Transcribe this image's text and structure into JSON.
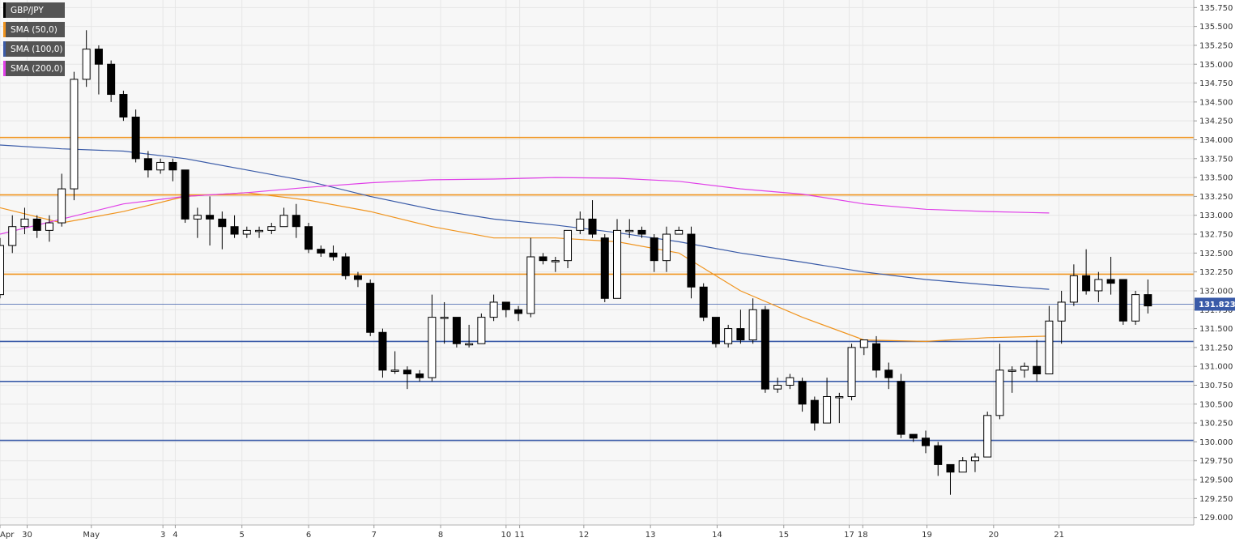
{
  "legend": [
    {
      "label": "GBP/JPY",
      "color": "#000000"
    },
    {
      "label": "SMA (50,0)",
      "color": "#f0941e"
    },
    {
      "label": "SMA (100,0)",
      "color": "#3a5ba8"
    },
    {
      "label": "SMA (200,0)",
      "color": "#e040e8"
    }
  ],
  "chart_data": {
    "type": "candlestick",
    "title": "",
    "xlabel": "",
    "ylabel": "",
    "symbol": "GBP/JPY",
    "timeframe_note": "",
    "y_range": [
      128.9,
      135.85
    ],
    "y_ticks": [
      "129.000",
      "129.250",
      "129.500",
      "129.750",
      "130.000",
      "130.250",
      "130.500",
      "130.750",
      "131.000",
      "131.250",
      "131.500",
      "131.750",
      "132.000",
      "132.250",
      "132.500",
      "132.750",
      "133.000",
      "133.250",
      "133.500",
      "133.750",
      "134.000",
      "134.250",
      "134.500",
      "134.750",
      "135.000",
      "135.250",
      "135.500",
      "135.750"
    ],
    "x_ticks": [
      {
        "label": "Apr",
        "i": -0.5
      },
      {
        "label": "30",
        "i": 2.2
      },
      {
        "label": "May",
        "i": 7.4
      },
      {
        "label": "3",
        "i": 13.2
      },
      {
        "label": "4",
        "i": 14.2
      },
      {
        "label": "5",
        "i": 19.6
      },
      {
        "label": "6",
        "i": 25.0
      },
      {
        "label": "7",
        "i": 30.3
      },
      {
        "label": "8",
        "i": 35.7
      },
      {
        "label": "10",
        "i": 41.0
      },
      {
        "label": "11",
        "i": 42.1
      },
      {
        "label": "12",
        "i": 47.3
      },
      {
        "label": "13",
        "i": 52.7
      },
      {
        "label": "14",
        "i": 58.1
      },
      {
        "label": "15",
        "i": 63.5
      },
      {
        "label": "17",
        "i": 68.8
      },
      {
        "label": "18",
        "i": 69.9
      },
      {
        "label": "19",
        "i": 75.1
      },
      {
        "label": "20",
        "i": 80.5
      },
      {
        "label": "21",
        "i": 85.8
      }
    ],
    "grid": true,
    "last_price": "131.823",
    "last_price_value": 131.823,
    "last_price_color": "#3a5ba8",
    "candles": [
      [
        131.95,
        132.6,
        132.7,
        131.9
      ],
      [
        132.6,
        132.85,
        133.0,
        132.5
      ],
      [
        132.85,
        132.95,
        133.1,
        132.75
      ],
      [
        132.95,
        132.8,
        133.0,
        132.7
      ],
      [
        132.8,
        132.9,
        133.0,
        132.65
      ],
      [
        132.9,
        133.35,
        133.55,
        132.85
      ],
      [
        133.35,
        134.8,
        134.9,
        133.2
      ],
      [
        134.8,
        135.2,
        135.45,
        134.7
      ],
      [
        135.2,
        135.0,
        135.25,
        134.6
      ],
      [
        135.0,
        134.6,
        135.05,
        134.5
      ],
      [
        134.6,
        134.3,
        134.65,
        134.25
      ],
      [
        134.3,
        133.75,
        134.4,
        133.7
      ],
      [
        133.75,
        133.6,
        133.85,
        133.5
      ],
      [
        133.6,
        133.7,
        133.75,
        133.55
      ],
      [
        133.7,
        133.6,
        133.75,
        133.45
      ],
      [
        133.6,
        132.95,
        133.6,
        132.9
      ],
      [
        132.95,
        133.0,
        133.1,
        132.7
      ],
      [
        133.0,
        132.95,
        133.25,
        132.6
      ],
      [
        132.95,
        132.85,
        133.05,
        132.55
      ],
      [
        132.85,
        132.75,
        133.0,
        132.7
      ],
      [
        132.75,
        132.8,
        132.85,
        132.7
      ],
      [
        132.8,
        132.8,
        132.85,
        132.7
      ],
      [
        132.8,
        132.85,
        132.9,
        132.75
      ],
      [
        132.85,
        133.0,
        133.1,
        132.85
      ],
      [
        133.0,
        132.85,
        133.15,
        132.7
      ],
      [
        132.85,
        132.55,
        132.9,
        132.5
      ],
      [
        132.55,
        132.5,
        132.6,
        132.45
      ],
      [
        132.5,
        132.45,
        132.6,
        132.4
      ],
      [
        132.45,
        132.2,
        132.5,
        132.15
      ],
      [
        132.2,
        132.15,
        132.25,
        132.05
      ],
      [
        132.1,
        131.45,
        132.15,
        131.4
      ],
      [
        131.45,
        130.95,
        131.5,
        130.85
      ],
      [
        130.95,
        130.95,
        131.2,
        130.9
      ],
      [
        130.95,
        130.9,
        131.0,
        130.7
      ],
      [
        130.9,
        130.85,
        130.95,
        130.8
      ],
      [
        130.85,
        131.65,
        131.95,
        130.8
      ],
      [
        131.65,
        131.65,
        131.85,
        131.3
      ],
      [
        131.65,
        131.3,
        131.65,
        131.25
      ],
      [
        131.3,
        131.3,
        131.55,
        131.25
      ],
      [
        131.3,
        131.65,
        131.7,
        131.3
      ],
      [
        131.65,
        131.85,
        131.95,
        131.6
      ],
      [
        131.85,
        131.75,
        131.85,
        131.65
      ],
      [
        131.75,
        131.7,
        131.8,
        131.6
      ],
      [
        131.7,
        132.45,
        132.7,
        131.65
      ],
      [
        132.45,
        132.4,
        132.5,
        132.35
      ],
      [
        132.4,
        132.4,
        132.45,
        132.25
      ],
      [
        132.4,
        132.8,
        132.8,
        132.3
      ],
      [
        132.8,
        132.95,
        133.05,
        132.75
      ],
      [
        132.95,
        132.75,
        133.2,
        132.7
      ],
      [
        132.7,
        131.9,
        132.75,
        131.85
      ],
      [
        131.9,
        132.8,
        132.95,
        131.9
      ],
      [
        132.8,
        132.8,
        132.95,
        132.7
      ],
      [
        132.8,
        132.75,
        132.85,
        132.7
      ],
      [
        132.7,
        132.4,
        132.75,
        132.25
      ],
      [
        132.4,
        132.75,
        132.85,
        132.25
      ],
      [
        132.75,
        132.8,
        132.85,
        132.75
      ],
      [
        132.75,
        132.05,
        132.85,
        131.9
      ],
      [
        132.05,
        131.65,
        132.1,
        131.6
      ],
      [
        131.65,
        131.3,
        131.65,
        131.25
      ],
      [
        131.3,
        131.5,
        131.55,
        131.25
      ],
      [
        131.5,
        131.35,
        131.75,
        131.3
      ],
      [
        131.35,
        131.75,
        131.9,
        131.3
      ],
      [
        131.75,
        130.7,
        131.8,
        130.65
      ],
      [
        130.7,
        130.75,
        130.85,
        130.65
      ],
      [
        130.75,
        130.85,
        130.9,
        130.7
      ],
      [
        130.8,
        130.5,
        130.85,
        130.4
      ],
      [
        130.55,
        130.25,
        130.6,
        130.15
      ],
      [
        130.25,
        130.6,
        130.85,
        130.3
      ],
      [
        130.6,
        130.6,
        130.65,
        130.25
      ],
      [
        130.6,
        131.25,
        131.3,
        130.55
      ],
      [
        131.25,
        131.35,
        131.35,
        131.15
      ],
      [
        131.3,
        130.95,
        131.4,
        130.85
      ],
      [
        130.95,
        130.85,
        131.05,
        130.7
      ],
      [
        130.8,
        130.1,
        130.9,
        130.05
      ],
      [
        130.1,
        130.05,
        130.1,
        130.0
      ],
      [
        130.05,
        129.95,
        130.15,
        129.85
      ],
      [
        129.95,
        129.7,
        130.0,
        129.55
      ],
      [
        129.7,
        129.6,
        129.65,
        129.3
      ],
      [
        129.6,
        129.75,
        129.8,
        129.6
      ],
      [
        129.75,
        129.8,
        129.85,
        129.6
      ],
      [
        129.8,
        130.35,
        130.4,
        129.8
      ],
      [
        130.35,
        130.95,
        131.3,
        130.3
      ],
      [
        130.95,
        130.95,
        131.0,
        130.65
      ],
      [
        130.95,
        131.0,
        131.05,
        130.85
      ],
      [
        131.0,
        130.9,
        131.35,
        130.8
      ],
      [
        130.9,
        131.6,
        131.8,
        130.9
      ],
      [
        131.6,
        131.85,
        132.0,
        131.3
      ],
      [
        131.85,
        132.2,
        132.35,
        131.8
      ],
      [
        132.2,
        132.0,
        132.55,
        131.95
      ],
      [
        132.0,
        132.15,
        132.25,
        131.85
      ],
      [
        132.15,
        132.1,
        132.45,
        131.95
      ],
      [
        132.15,
        131.6,
        132.15,
        131.55
      ],
      [
        131.6,
        131.95,
        132.0,
        131.55
      ],
      [
        131.95,
        131.8,
        132.15,
        131.7
      ]
    ],
    "horizontal_levels": [
      {
        "value": 134.03,
        "color": "#f0941e"
      },
      {
        "value": 133.27,
        "color": "#f0941e"
      },
      {
        "value": 132.22,
        "color": "#f0941e"
      },
      {
        "value": 131.33,
        "color": "#3a5ba8"
      },
      {
        "value": 130.8,
        "color": "#3a5ba8"
      },
      {
        "value": 130.02,
        "color": "#3a5ba8"
      }
    ],
    "series": [
      {
        "name": "SMA (50,0)",
        "color": "#f0941e",
        "x": [
          0,
          5,
          10,
          15,
          20,
          25,
          30,
          35,
          40,
          45,
          50,
          55,
          60,
          65,
          70,
          75,
          80,
          85
        ],
        "values": [
          133.1,
          132.9,
          133.05,
          133.25,
          133.3,
          133.2,
          133.05,
          132.85,
          132.7,
          132.7,
          132.65,
          132.5,
          132.0,
          131.65,
          131.35,
          131.33,
          131.38,
          131.4
        ]
      },
      {
        "name": "SMA (100,0)",
        "color": "#3a5ba8",
        "x": [
          0,
          5,
          10,
          15,
          20,
          25,
          30,
          35,
          40,
          45,
          50,
          55,
          60,
          65,
          70,
          75,
          80,
          85
        ],
        "values": [
          133.93,
          133.88,
          133.85,
          133.75,
          133.6,
          133.45,
          133.25,
          133.08,
          132.95,
          132.87,
          132.77,
          132.65,
          132.5,
          132.38,
          132.25,
          132.15,
          132.08,
          132.02
        ]
      },
      {
        "name": "SMA (200,0)",
        "color": "#e040e8",
        "x": [
          0,
          5,
          10,
          15,
          20,
          25,
          30,
          35,
          40,
          45,
          50,
          55,
          60,
          65,
          70,
          75,
          80,
          85
        ],
        "values": [
          132.75,
          132.95,
          133.15,
          133.25,
          133.3,
          133.37,
          133.43,
          133.47,
          133.48,
          133.5,
          133.49,
          133.45,
          133.35,
          133.28,
          133.15,
          133.08,
          133.05,
          133.03
        ]
      }
    ]
  }
}
